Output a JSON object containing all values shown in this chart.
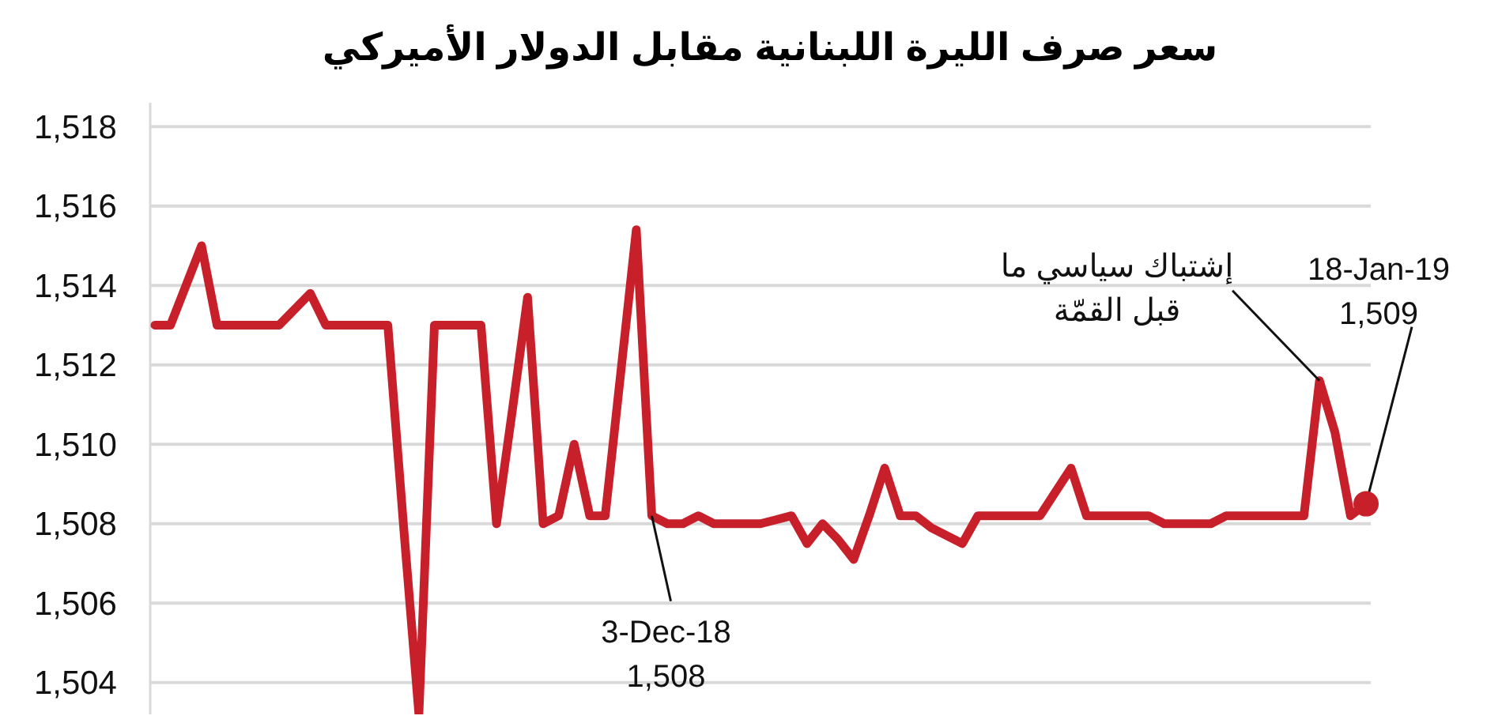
{
  "chart_data": {
    "type": "line",
    "title": "سعر صرف الليرة اللبنانية مقابل الدولار الأميركي",
    "categories": [
      null,
      null,
      null,
      null,
      null,
      null,
      null,
      null,
      null,
      null,
      null,
      null,
      null,
      null,
      null,
      null,
      null,
      null,
      null,
      null,
      null,
      null,
      null,
      null,
      null,
      null,
      null,
      null,
      null,
      null,
      null,
      null,
      null,
      null,
      null,
      null,
      null,
      null,
      null,
      null,
      null,
      null,
      null,
      null,
      null,
      null,
      null,
      null,
      null,
      null,
      null,
      null,
      null,
      null,
      null,
      null,
      null,
      null,
      null,
      null,
      null,
      null,
      null,
      null,
      null,
      null,
      null,
      null,
      null,
      null,
      null,
      null,
      null,
      null,
      null,
      null,
      null,
      null,
      null
    ],
    "ylim": [
      1503.2,
      1518.6
    ],
    "yticks": [
      {
        "value": 1504,
        "label": "1,504"
      },
      {
        "value": 1506,
        "label": "1,506"
      },
      {
        "value": 1508,
        "label": "1,508"
      },
      {
        "value": 1510,
        "label": "1,510"
      },
      {
        "value": 1512,
        "label": "1,512"
      },
      {
        "value": 1514,
        "label": "1,514"
      },
      {
        "value": 1516,
        "label": "1,516"
      },
      {
        "value": 1518,
        "label": "1,518"
      }
    ],
    "tick_labels": "y",
    "grid": "y",
    "line_style": "solid",
    "series": [
      {
        "color": "#c8202a",
        "values": [
          1513,
          1513,
          1514,
          1515,
          1513,
          1513,
          1513,
          1513,
          1513,
          1513.4,
          1513.8,
          1513,
          1513,
          1513,
          1513,
          1513,
          1508,
          1503.2,
          1513,
          1513,
          1513,
          1513,
          1508,
          1510.8,
          1513.7,
          1508,
          1508.2,
          1510,
          1508.2,
          1508.2,
          1511.8,
          1515.4,
          1508.2,
          1508,
          1508,
          1508.2,
          1508,
          1508,
          1508,
          1508,
          1508.1,
          1508.2,
          1507.5,
          1508,
          1507.6,
          1507.1,
          1508.2,
          1509.4,
          1508.2,
          1508.2,
          1507.9,
          1507.7,
          1507.5,
          1508.2,
          1508.2,
          1508.2,
          1508.2,
          1508.2,
          1508.8,
          1509.4,
          1508.2,
          1508.2,
          1508.2,
          1508.2,
          1508.2,
          1508,
          1508,
          1508,
          1508,
          1508.2,
          1508.2,
          1508.2,
          1508.2,
          1508.2,
          1508.2,
          1511.6,
          1510.3,
          1508.2,
          1508.5
        ]
      }
    ],
    "annotations": [
      "3-Dec-18\n1,508",
      "إشتباك سياسي ما\nقبل القمّة",
      "18-Jan-19\n1,509"
    ]
  }
}
